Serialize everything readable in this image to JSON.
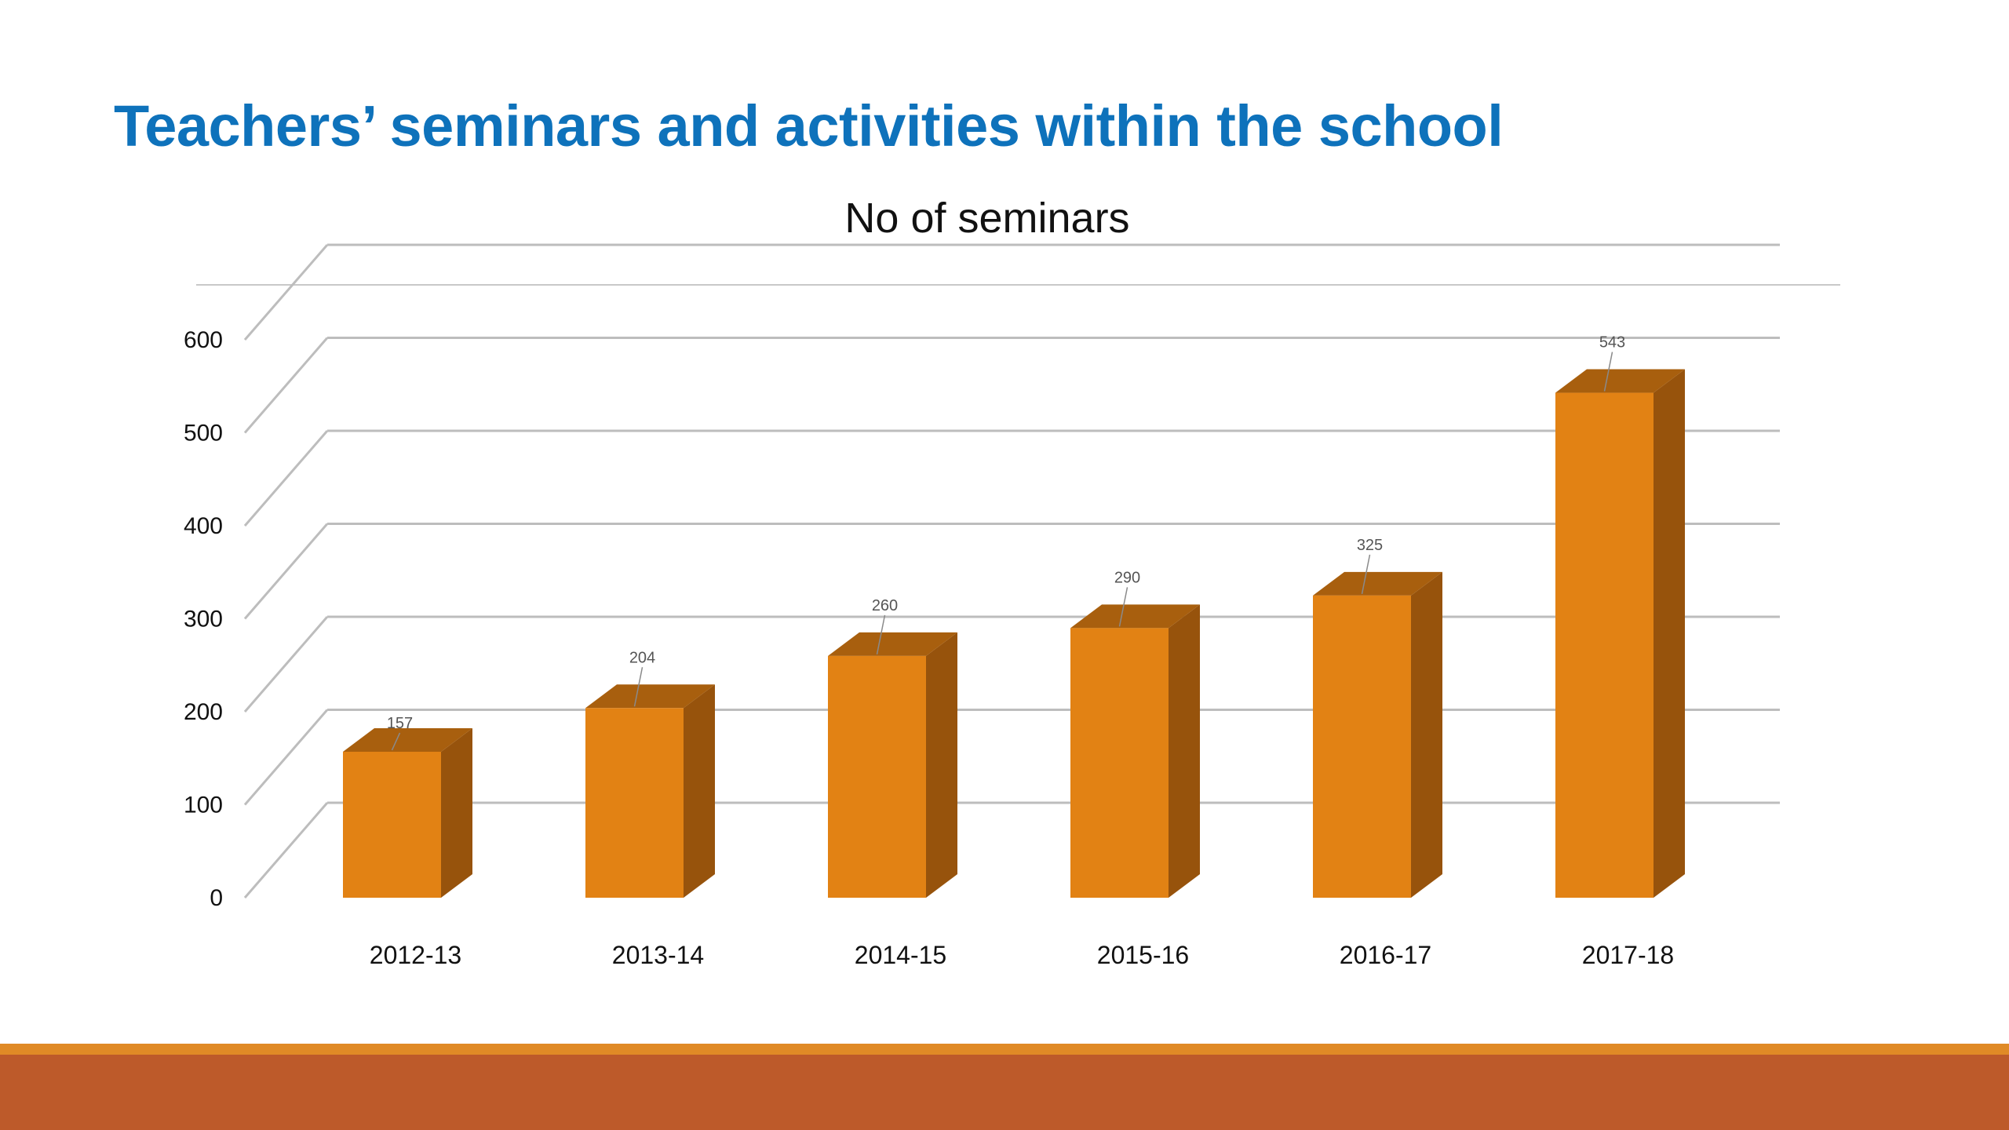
{
  "slide": {
    "title": "Teachers’ seminars and activities within the school",
    "title_color": "#0e72bb",
    "footer_colors": {
      "thin": "#e08a26",
      "thick": "#bd5a2a"
    }
  },
  "chart_data": {
    "type": "bar",
    "style": "3d-column",
    "title": "No of seminars",
    "xlabel": "",
    "ylabel": "",
    "categories": [
      "2012-13",
      "2013-14",
      "2014-15",
      "2015-16",
      "2016-17",
      "2017-18"
    ],
    "series": [
      {
        "values": [
          157,
          204,
          260,
          290,
          325,
          543
        ],
        "color": "#e28214"
      }
    ],
    "ylim": [
      0,
      600
    ],
    "yticks": [
      0,
      100,
      200,
      300,
      400,
      500,
      600
    ],
    "data_labels": true,
    "legend": "none",
    "grid": true
  }
}
